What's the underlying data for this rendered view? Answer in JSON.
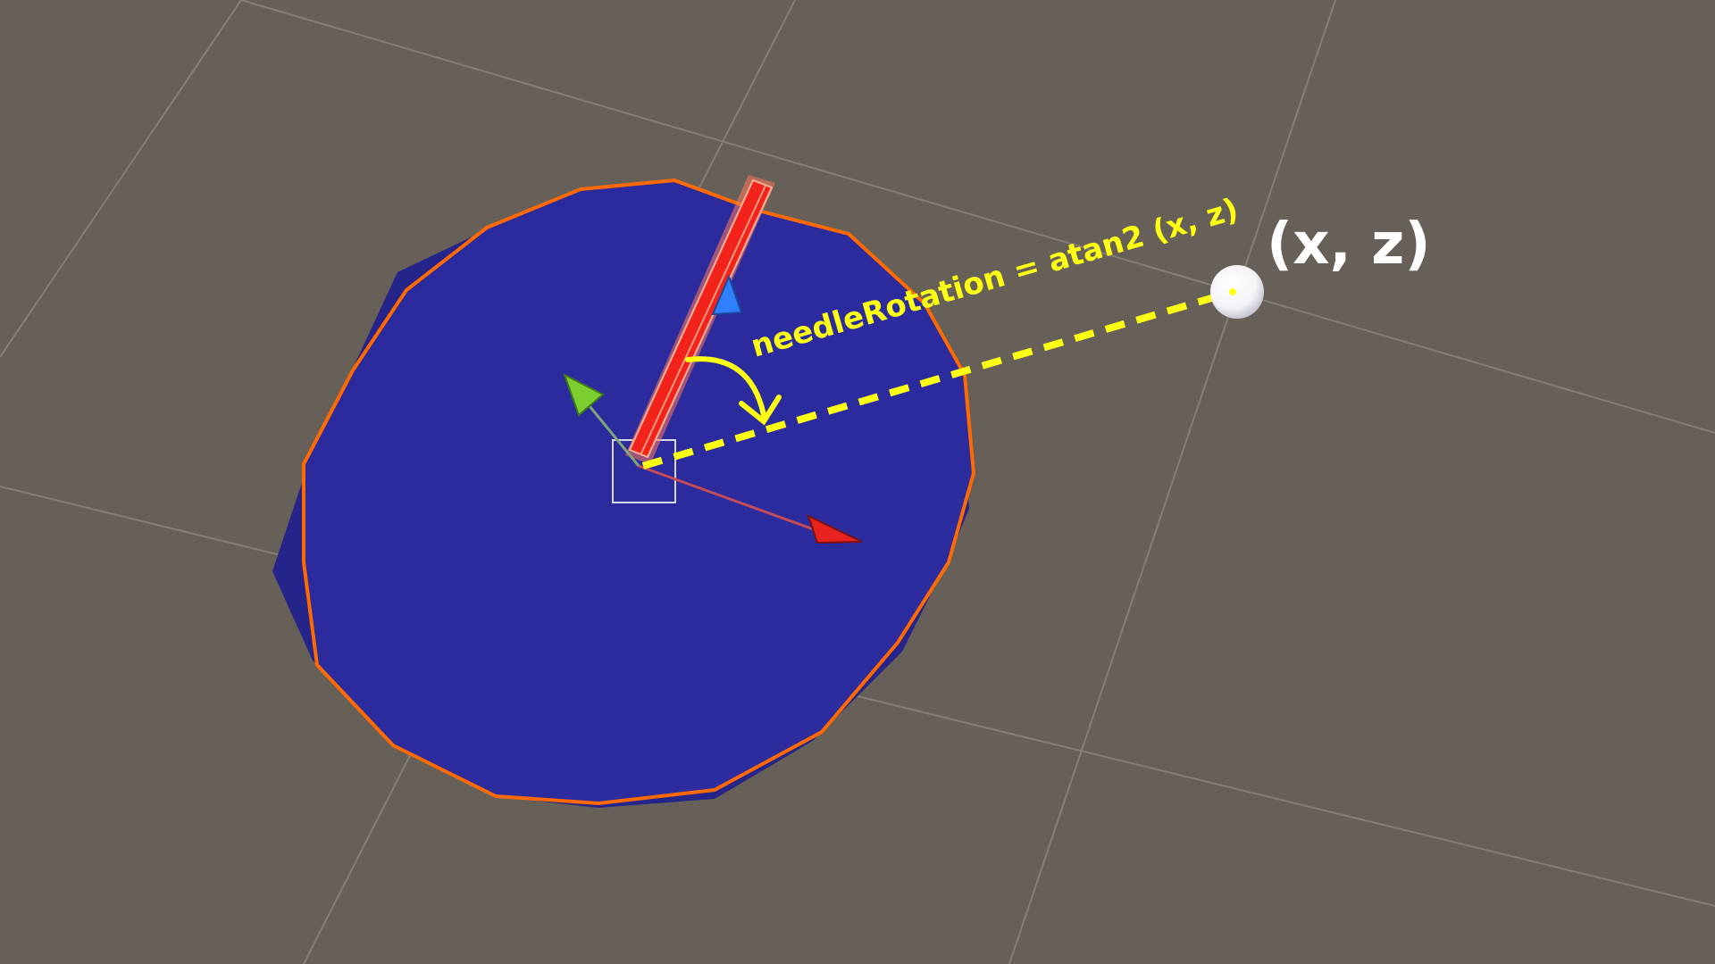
{
  "scene": {
    "background_color": "#676058",
    "grid_color": "#8a847b",
    "disc_color": "#2b2a9e",
    "disc_outline_color": "#ff6a00",
    "needle_color": "#f2231b",
    "needle_highlight_color": "#ffb199",
    "target_color": "#ffffff",
    "guide_color": "#ffff14",
    "gizmo_x_color": "#e8221e",
    "gizmo_y_color": "#7ccf2e",
    "gizmo_z_color": "#2f7fff",
    "selection_box_color": "#d8d8e8"
  },
  "labels": {
    "formula": "needleRotation = atan2 (x, z)",
    "target_point": "(x, z)"
  },
  "icons": {
    "angle_arrow": "curved-arrow-icon",
    "target": "white-sphere-icon",
    "gizmo": "transform-gizmo-icon"
  }
}
